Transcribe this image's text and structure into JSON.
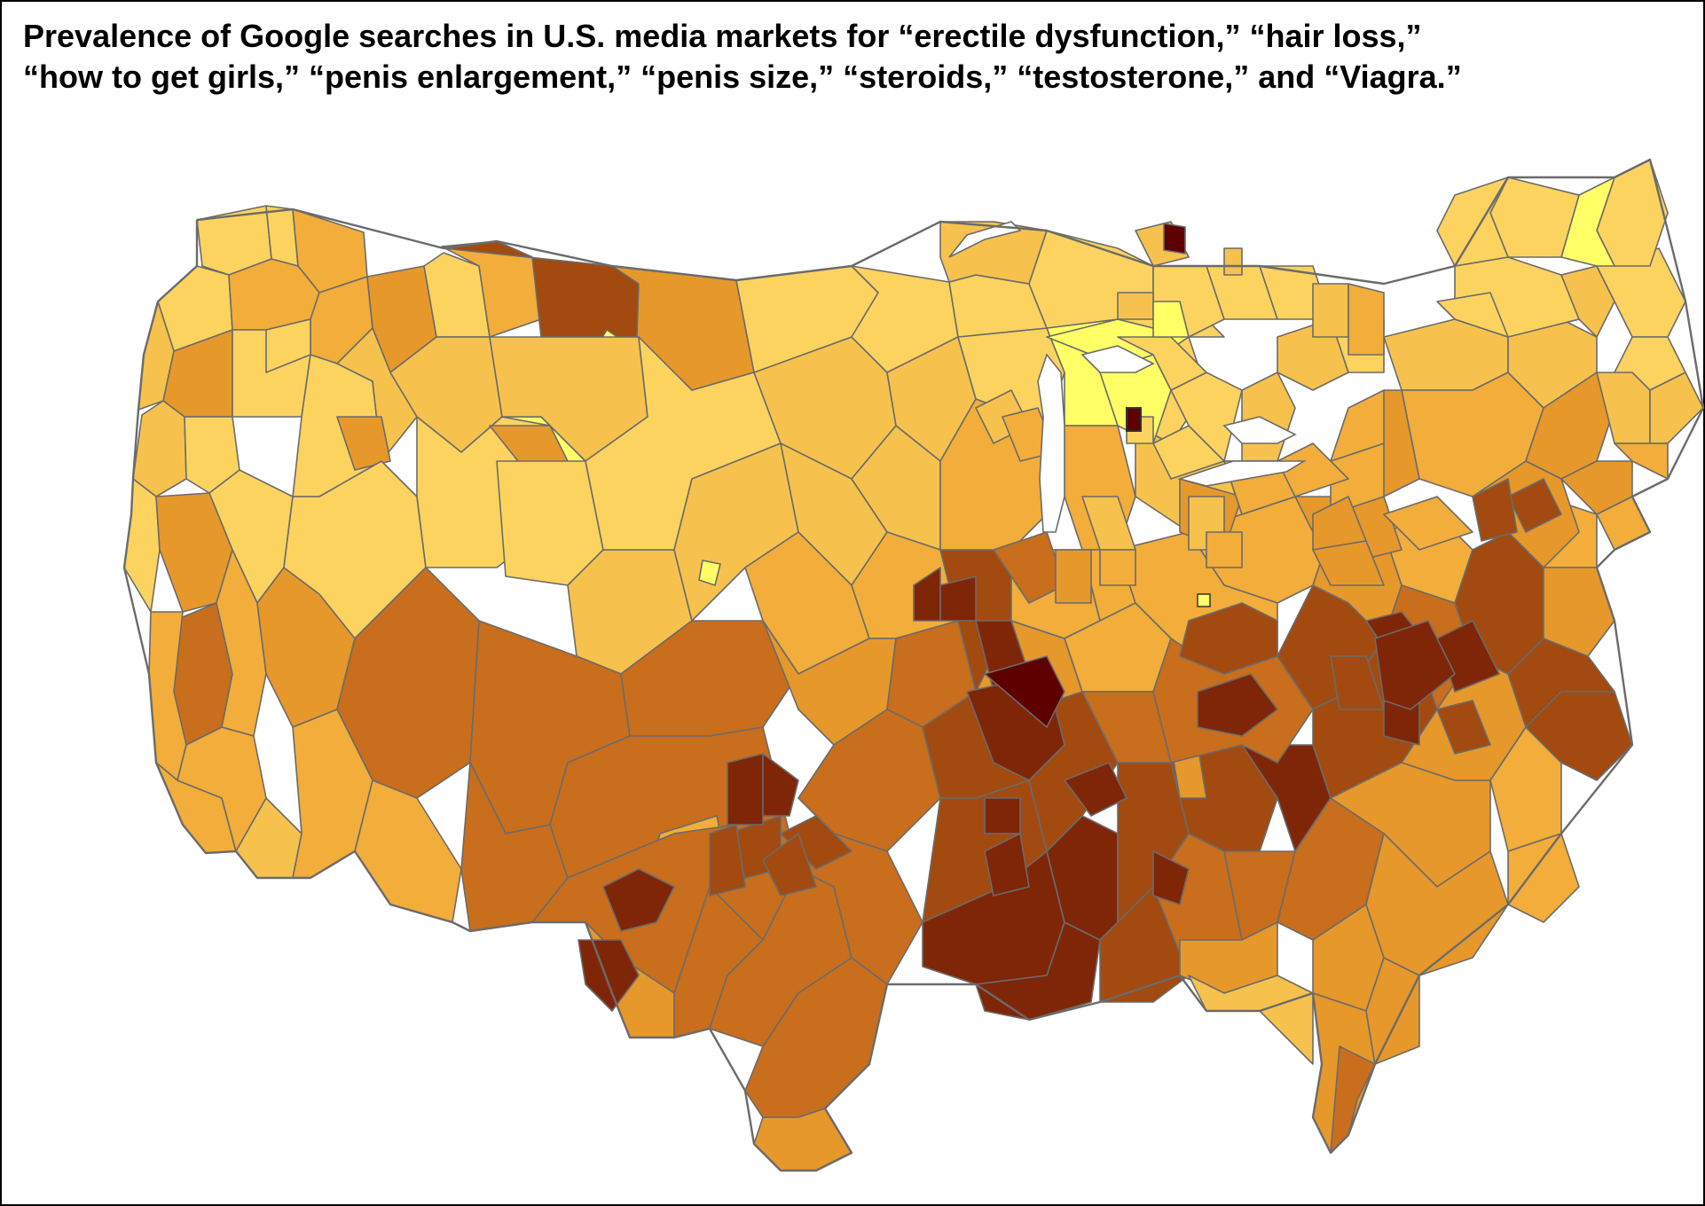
{
  "title": {
    "line1": "Prevalence of Google searches in U.S. media markets for “erectile dysfunction,” “hair loss,”",
    "line2": "“how to get girls,” “penis enlargement,” “penis size,” “steroids,” “testosterone,” and “Viagra.”"
  },
  "map": {
    "subject": "Contiguous United States divided into media markets",
    "color_scale": [
      "#ffff66",
      "#fcd35f",
      "#f6c24d",
      "#f2ad3a",
      "#e6982b",
      "#c96e1c",
      "#a24a10",
      "#7f2608",
      "#5e0000"
    ],
    "legend": "none"
  }
}
